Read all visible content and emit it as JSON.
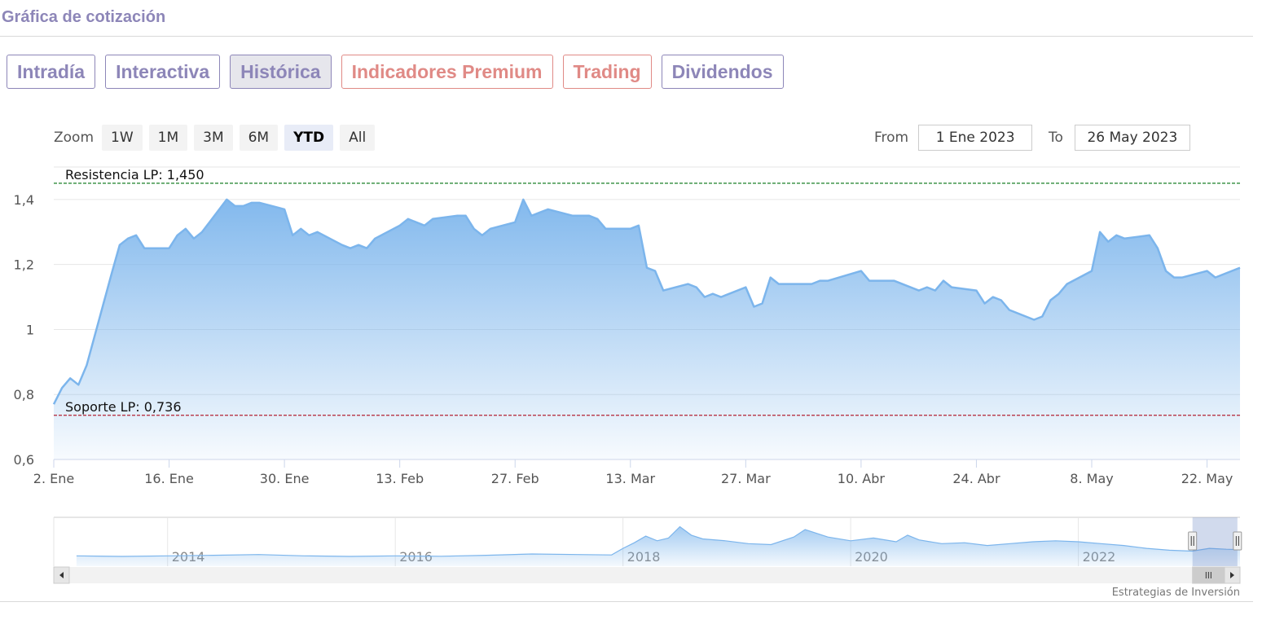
{
  "header": {
    "title": "Gráfica de cotización"
  },
  "tabs": [
    {
      "label": "Intradía",
      "premium": false,
      "active": false
    },
    {
      "label": "Interactiva",
      "premium": false,
      "active": false
    },
    {
      "label": "Histórica",
      "premium": false,
      "active": true
    },
    {
      "label": "Indicadores Premium",
      "premium": true,
      "active": false
    },
    {
      "label": "Trading",
      "premium": true,
      "active": false
    },
    {
      "label": "Dividendos",
      "premium": false,
      "active": false
    }
  ],
  "zoom": {
    "label": "Zoom",
    "buttons": [
      "1W",
      "1M",
      "3M",
      "6M",
      "YTD",
      "All"
    ],
    "active": "YTD"
  },
  "range": {
    "from_label": "From",
    "from_value": "1 Ene 2023",
    "to_label": "To",
    "to_value": "26 May 2023"
  },
  "colors": {
    "series": "#7cb5ec",
    "resistance": "#2e8b3a",
    "support": "#b22234",
    "tab_accent": "#8d86b8",
    "tab_premium": "#e08a86"
  },
  "chart_data": {
    "type": "area",
    "title": "",
    "xlabel": "",
    "ylabel": "",
    "ylim": [
      0.6,
      1.5
    ],
    "yticks": [
      {
        "v": 0.6,
        "label": "0,6"
      },
      {
        "v": 0.8,
        "label": "0,8"
      },
      {
        "v": 1.0,
        "label": "1"
      },
      {
        "v": 1.2,
        "label": "1,2"
      },
      {
        "v": 1.4,
        "label": "1,4"
      }
    ],
    "xlim": [
      "2023-01-02",
      "2023-05-26"
    ],
    "xticks": [
      {
        "date": "2023-01-02",
        "label": "2. Ene"
      },
      {
        "date": "2023-01-16",
        "label": "16. Ene"
      },
      {
        "date": "2023-01-30",
        "label": "30. Ene"
      },
      {
        "date": "2023-02-13",
        "label": "13. Feb"
      },
      {
        "date": "2023-02-27",
        "label": "27. Feb"
      },
      {
        "date": "2023-03-13",
        "label": "13. Mar"
      },
      {
        "date": "2023-03-27",
        "label": "27. Mar"
      },
      {
        "date": "2023-04-10",
        "label": "10. Abr"
      },
      {
        "date": "2023-04-24",
        "label": "24. Abr"
      },
      {
        "date": "2023-05-08",
        "label": "8. May"
      },
      {
        "date": "2023-05-22",
        "label": "22. May"
      }
    ],
    "grid": true,
    "plotlines": [
      {
        "label": "Resistencia LP: 1,450",
        "value": 1.45,
        "kind": "resistance"
      },
      {
        "label": "Soporte LP: 0,736",
        "value": 0.736,
        "kind": "support"
      }
    ],
    "series": [
      {
        "points": [
          [
            "2023-01-02",
            0.77
          ],
          [
            "2023-01-03",
            0.82
          ],
          [
            "2023-01-04",
            0.85
          ],
          [
            "2023-01-05",
            0.83
          ],
          [
            "2023-01-06",
            0.89
          ],
          [
            "2023-01-09",
            1.17
          ],
          [
            "2023-01-10",
            1.26
          ],
          [
            "2023-01-11",
            1.28
          ],
          [
            "2023-01-12",
            1.29
          ],
          [
            "2023-01-13",
            1.25
          ],
          [
            "2023-01-16",
            1.25
          ],
          [
            "2023-01-17",
            1.29
          ],
          [
            "2023-01-18",
            1.31
          ],
          [
            "2023-01-19",
            1.28
          ],
          [
            "2023-01-20",
            1.3
          ],
          [
            "2023-01-23",
            1.4
          ],
          [
            "2023-01-24",
            1.38
          ],
          [
            "2023-01-25",
            1.38
          ],
          [
            "2023-01-26",
            1.39
          ],
          [
            "2023-01-27",
            1.39
          ],
          [
            "2023-01-30",
            1.37
          ],
          [
            "2023-01-31",
            1.29
          ],
          [
            "2023-02-01",
            1.31
          ],
          [
            "2023-02-02",
            1.29
          ],
          [
            "2023-02-03",
            1.3
          ],
          [
            "2023-02-06",
            1.26
          ],
          [
            "2023-02-07",
            1.25
          ],
          [
            "2023-02-08",
            1.26
          ],
          [
            "2023-02-09",
            1.25
          ],
          [
            "2023-02-10",
            1.28
          ],
          [
            "2023-02-13",
            1.32
          ],
          [
            "2023-02-14",
            1.34
          ],
          [
            "2023-02-15",
            1.33
          ],
          [
            "2023-02-16",
            1.32
          ],
          [
            "2023-02-17",
            1.34
          ],
          [
            "2023-02-20",
            1.35
          ],
          [
            "2023-02-21",
            1.35
          ],
          [
            "2023-02-22",
            1.31
          ],
          [
            "2023-02-23",
            1.29
          ],
          [
            "2023-02-24",
            1.31
          ],
          [
            "2023-02-27",
            1.33
          ],
          [
            "2023-02-28",
            1.4
          ],
          [
            "2023-03-01",
            1.35
          ],
          [
            "2023-03-02",
            1.36
          ],
          [
            "2023-03-03",
            1.37
          ],
          [
            "2023-03-06",
            1.35
          ],
          [
            "2023-03-07",
            1.35
          ],
          [
            "2023-03-08",
            1.35
          ],
          [
            "2023-03-09",
            1.34
          ],
          [
            "2023-03-10",
            1.31
          ],
          [
            "2023-03-13",
            1.31
          ],
          [
            "2023-03-14",
            1.32
          ],
          [
            "2023-03-15",
            1.19
          ],
          [
            "2023-03-16",
            1.18
          ],
          [
            "2023-03-17",
            1.12
          ],
          [
            "2023-03-20",
            1.14
          ],
          [
            "2023-03-21",
            1.13
          ],
          [
            "2023-03-22",
            1.1
          ],
          [
            "2023-03-23",
            1.11
          ],
          [
            "2023-03-24",
            1.1
          ],
          [
            "2023-03-27",
            1.13
          ],
          [
            "2023-03-28",
            1.07
          ],
          [
            "2023-03-29",
            1.08
          ],
          [
            "2023-03-30",
            1.16
          ],
          [
            "2023-03-31",
            1.14
          ],
          [
            "2023-04-03",
            1.14
          ],
          [
            "2023-04-04",
            1.14
          ],
          [
            "2023-04-05",
            1.15
          ],
          [
            "2023-04-06",
            1.15
          ],
          [
            "2023-04-10",
            1.18
          ],
          [
            "2023-04-11",
            1.15
          ],
          [
            "2023-04-12",
            1.15
          ],
          [
            "2023-04-13",
            1.15
          ],
          [
            "2023-04-14",
            1.15
          ],
          [
            "2023-04-17",
            1.12
          ],
          [
            "2023-04-18",
            1.13
          ],
          [
            "2023-04-19",
            1.12
          ],
          [
            "2023-04-20",
            1.15
          ],
          [
            "2023-04-21",
            1.13
          ],
          [
            "2023-04-24",
            1.12
          ],
          [
            "2023-04-25",
            1.08
          ],
          [
            "2023-04-26",
            1.1
          ],
          [
            "2023-04-27",
            1.09
          ],
          [
            "2023-04-28",
            1.06
          ],
          [
            "2023-05-01",
            1.03
          ],
          [
            "2023-05-02",
            1.04
          ],
          [
            "2023-05-03",
            1.09
          ],
          [
            "2023-05-04",
            1.11
          ],
          [
            "2023-05-05",
            1.14
          ],
          [
            "2023-05-08",
            1.18
          ],
          [
            "2023-05-09",
            1.3
          ],
          [
            "2023-05-10",
            1.27
          ],
          [
            "2023-05-11",
            1.29
          ],
          [
            "2023-05-12",
            1.28
          ],
          [
            "2023-05-15",
            1.29
          ],
          [
            "2023-05-16",
            1.25
          ],
          [
            "2023-05-17",
            1.18
          ],
          [
            "2023-05-18",
            1.16
          ],
          [
            "2023-05-19",
            1.16
          ],
          [
            "2023-05-22",
            1.18
          ],
          [
            "2023-05-23",
            1.16
          ],
          [
            "2023-05-24",
            1.17
          ],
          [
            "2023-05-25",
            1.18
          ],
          [
            "2023-05-26",
            1.19
          ]
        ]
      }
    ]
  },
  "navigator": {
    "year_labels": [
      "2014",
      "2016",
      "2018",
      "2020",
      "2022"
    ],
    "years_range": [
      2013.0,
      2023.42
    ],
    "ylim": [
      0.0,
      2.6
    ],
    "selection": [
      "2023-01-02",
      "2023-05-26"
    ],
    "points": [
      [
        2013.2,
        0.55
      ],
      [
        2013.6,
        0.52
      ],
      [
        2014.0,
        0.55
      ],
      [
        2014.4,
        0.58
      ],
      [
        2014.8,
        0.62
      ],
      [
        2015.2,
        0.55
      ],
      [
        2015.6,
        0.52
      ],
      [
        2016.0,
        0.55
      ],
      [
        2016.4,
        0.53
      ],
      [
        2016.8,
        0.58
      ],
      [
        2017.2,
        0.65
      ],
      [
        2017.6,
        0.62
      ],
      [
        2017.9,
        0.6
      ],
      [
        2018.0,
        0.95
      ],
      [
        2018.1,
        1.25
      ],
      [
        2018.2,
        1.6
      ],
      [
        2018.3,
        1.35
      ],
      [
        2018.4,
        1.5
      ],
      [
        2018.5,
        2.1
      ],
      [
        2018.6,
        1.65
      ],
      [
        2018.7,
        1.45
      ],
      [
        2018.9,
        1.35
      ],
      [
        2019.1,
        1.2
      ],
      [
        2019.3,
        1.15
      ],
      [
        2019.5,
        1.55
      ],
      [
        2019.6,
        1.95
      ],
      [
        2019.8,
        1.55
      ],
      [
        2020.0,
        1.35
      ],
      [
        2020.2,
        1.5
      ],
      [
        2020.4,
        1.3
      ],
      [
        2020.5,
        1.65
      ],
      [
        2020.6,
        1.4
      ],
      [
        2020.8,
        1.2
      ],
      [
        2021.0,
        1.25
      ],
      [
        2021.2,
        1.1
      ],
      [
        2021.4,
        1.2
      ],
      [
        2021.6,
        1.3
      ],
      [
        2021.8,
        1.35
      ],
      [
        2022.0,
        1.3
      ],
      [
        2022.2,
        1.2
      ],
      [
        2022.4,
        1.1
      ],
      [
        2022.6,
        0.95
      ],
      [
        2022.8,
        0.85
      ],
      [
        2023.0,
        0.8
      ],
      [
        2023.15,
        0.95
      ],
      [
        2023.3,
        0.9
      ],
      [
        2023.42,
        0.88
      ]
    ]
  },
  "credits": "Estrategias de Inversión"
}
